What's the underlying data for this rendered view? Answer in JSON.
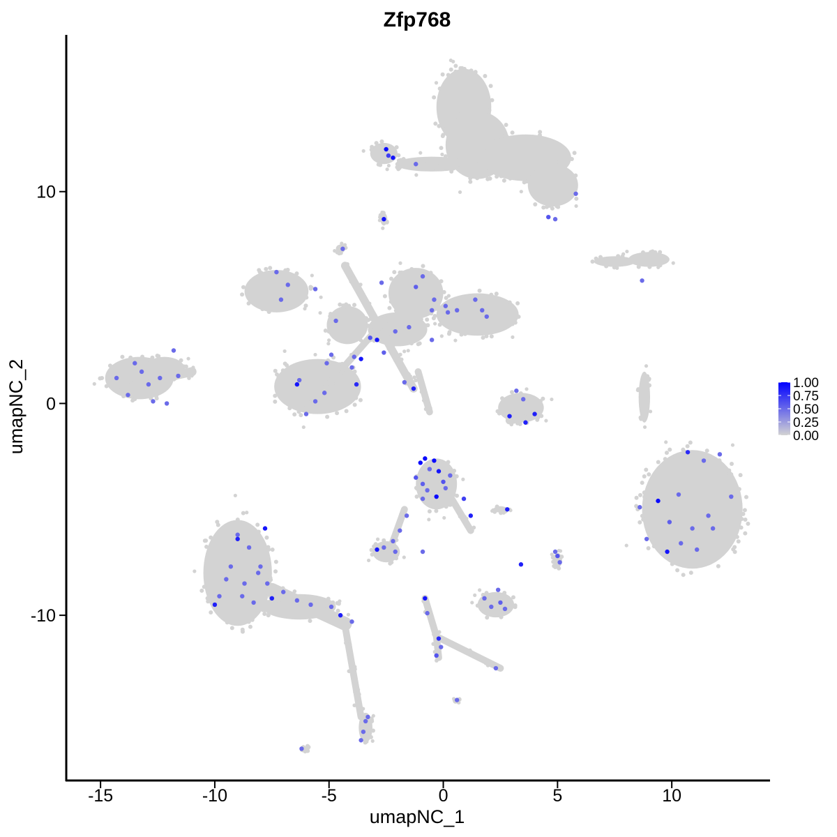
{
  "chart_data": {
    "type": "scatter",
    "title": "Zfp768",
    "xlabel": "umapNC_1",
    "ylabel": "umapNC_2",
    "xlim": [
      -16.5,
      14.3
    ],
    "ylim": [
      -17.8,
      17.4
    ],
    "x_ticks": [
      -15,
      -10,
      -5,
      0,
      5,
      10
    ],
    "x_tick_labels": [
      "-15",
      "-10",
      "-5",
      "0",
      "5",
      "10"
    ],
    "y_ticks": [
      -10,
      0,
      10
    ],
    "y_tick_labels": [
      "-10",
      "0",
      "10"
    ],
    "grid": false,
    "legend": {
      "position": "right",
      "type": "colorbar",
      "range": [
        0,
        1
      ],
      "ticks": [
        1.0,
        0.75,
        0.5,
        0.25,
        0.0
      ],
      "tick_labels": [
        "1.00",
        "0.75",
        "0.50",
        "0.25",
        "0.00"
      ],
      "low_color": "#D3D3D3",
      "high_color": "#0000FF"
    },
    "colors": {
      "unexpressed": "#D3D3D3",
      "mid_expression": "#8A5CF5",
      "high_expression": "#0000FF"
    },
    "clusters": [
      {
        "shape": "ellipse",
        "cx": 0.9,
        "cy": 14.0,
        "rx": 1.2,
        "ry": 1.8
      },
      {
        "shape": "ellipse",
        "cx": 1.5,
        "cy": 12.2,
        "rx": 1.4,
        "ry": 1.6
      },
      {
        "shape": "ellipse",
        "cx": 3.6,
        "cy": 11.6,
        "rx": 2.0,
        "ry": 1.1
      },
      {
        "shape": "ellipse",
        "cx": 4.8,
        "cy": 10.3,
        "rx": 1.1,
        "ry": 1.0
      },
      {
        "shape": "ellipse",
        "cx": -0.5,
        "cy": 11.3,
        "rx": 1.6,
        "ry": 0.35
      },
      {
        "shape": "ellipse",
        "cx": -2.6,
        "cy": 11.8,
        "rx": 0.6,
        "ry": 0.5
      },
      {
        "shape": "ellipse",
        "cx": 9.0,
        "cy": 6.8,
        "rx": 0.9,
        "ry": 0.35
      },
      {
        "shape": "ellipse",
        "cx": 7.5,
        "cy": 6.7,
        "rx": 0.9,
        "ry": 0.25
      },
      {
        "shape": "ellipse",
        "cx": -7.3,
        "cy": 5.3,
        "rx": 1.4,
        "ry": 1.0
      },
      {
        "shape": "ellipse",
        "cx": -1.2,
        "cy": 5.2,
        "rx": 1.2,
        "ry": 1.2
      },
      {
        "shape": "ellipse",
        "cx": 1.5,
        "cy": 4.2,
        "rx": 1.8,
        "ry": 1.0
      },
      {
        "shape": "ellipse",
        "cx": -2.0,
        "cy": 3.5,
        "rx": 1.3,
        "ry": 0.8
      },
      {
        "shape": "ellipse",
        "cx": -4.2,
        "cy": 3.7,
        "rx": 0.9,
        "ry": 0.9
      },
      {
        "shape": "ellipse",
        "cx": -5.5,
        "cy": 0.8,
        "rx": 1.9,
        "ry": 1.3
      },
      {
        "shape": "ellipse",
        "cx": -13.3,
        "cy": 1.2,
        "rx": 1.5,
        "ry": 1.0
      },
      {
        "shape": "ellipse",
        "cx": -12.2,
        "cy": 1.6,
        "rx": 0.9,
        "ry": 0.6
      },
      {
        "shape": "ellipse",
        "cx": 3.4,
        "cy": -0.2,
        "rx": 1.0,
        "ry": 0.7
      },
      {
        "shape": "ellipse",
        "cx": 8.8,
        "cy": 0.3,
        "rx": 0.25,
        "ry": 1.2
      },
      {
        "shape": "ellipse",
        "cx": 10.9,
        "cy": -5.0,
        "rx": 2.2,
        "ry": 2.8
      },
      {
        "shape": "ellipse",
        "cx": -0.3,
        "cy": -3.8,
        "rx": 0.9,
        "ry": 1.2
      },
      {
        "shape": "ellipse",
        "cx": -9.0,
        "cy": -8.0,
        "rx": 1.5,
        "ry": 2.5
      },
      {
        "shape": "ellipse",
        "cx": -6.3,
        "cy": -9.6,
        "rx": 1.6,
        "ry": 0.6
      },
      {
        "shape": "ellipse",
        "cx": -2.5,
        "cy": -7.0,
        "rx": 0.6,
        "ry": 0.5
      },
      {
        "shape": "ellipse",
        "cx": 2.3,
        "cy": -9.5,
        "rx": 0.8,
        "ry": 0.6
      },
      {
        "shape": "ellipse",
        "cx": 5.0,
        "cy": -7.4,
        "rx": 0.2,
        "ry": 0.35
      },
      {
        "shape": "ellipse",
        "cx": -3.4,
        "cy": -15.3,
        "rx": 0.3,
        "ry": 0.7
      },
      {
        "shape": "ellipse",
        "cx": 2.5,
        "cy": -5.0,
        "rx": 0.3,
        "ry": 0.15
      },
      {
        "shape": "ellipse",
        "cx": -2.6,
        "cy": 8.7,
        "rx": 0.15,
        "ry": 0.3
      },
      {
        "shape": "ellipse",
        "cx": -4.5,
        "cy": 7.3,
        "rx": 0.2,
        "ry": 0.2
      },
      {
        "shape": "ellipse",
        "cx": -6.0,
        "cy": -16.3,
        "rx": 0.15,
        "ry": 0.12
      },
      {
        "shape": "ellipse",
        "cx": 0.6,
        "cy": -14.0,
        "rx": 0.1,
        "ry": 0.1
      },
      {
        "shape": "line",
        "from": [
          -4.3,
          6.5
        ],
        "to": [
          -1.3,
          0.7
        ],
        "w": 0.35
      },
      {
        "shape": "line",
        "from": [
          -2.5,
          4.0
        ],
        "to": [
          -6.0,
          -0.3
        ],
        "w": 0.3
      },
      {
        "shape": "line",
        "from": [
          -0.8,
          11.2
        ],
        "to": [
          0.9,
          11.4
        ],
        "w": 0.35
      },
      {
        "shape": "line",
        "from": [
          -1.1,
          1.5
        ],
        "to": [
          -0.6,
          -0.4
        ],
        "w": 0.3
      },
      {
        "shape": "line",
        "from": [
          1.2,
          -6.0
        ],
        "to": [
          0.2,
          -4.2
        ],
        "w": 0.3
      },
      {
        "shape": "line",
        "from": [
          -1.7,
          -5.0
        ],
        "to": [
          -2.3,
          -6.8
        ],
        "w": 0.3
      },
      {
        "shape": "line",
        "from": [
          -0.8,
          -9.2
        ],
        "to": [
          -0.3,
          -11.0
        ],
        "w": 0.3
      },
      {
        "shape": "line",
        "from": [
          -0.3,
          -11.0
        ],
        "to": [
          2.5,
          -12.5
        ],
        "w": 0.3
      },
      {
        "shape": "line",
        "from": [
          -0.3,
          -11.0
        ],
        "to": [
          -0.2,
          -12.0
        ],
        "w": 0.3
      },
      {
        "shape": "line",
        "from": [
          -4.3,
          -10.5
        ],
        "to": [
          -3.6,
          -14.8
        ],
        "w": 0.3
      },
      {
        "shape": "line",
        "from": [
          -7.5,
          -8.8
        ],
        "to": [
          -4.3,
          -10.4
        ],
        "w": 0.6
      },
      {
        "shape": "line",
        "from": [
          -14.0,
          0.8
        ],
        "to": [
          -11.0,
          1.5
        ],
        "w": 0.4
      },
      {
        "shape": "line",
        "from": [
          2.9,
          -0.8
        ],
        "to": [
          4.1,
          -0.5
        ],
        "w": 0.35
      }
    ],
    "expressing_points": [
      [
        -2.5,
        12.0,
        0.95
      ],
      [
        -2.4,
        11.7,
        0.7
      ],
      [
        -2.2,
        11.6,
        0.9
      ],
      [
        -1.2,
        11.3,
        0.5
      ],
      [
        5.8,
        9.9,
        0.5
      ],
      [
        4.6,
        8.8,
        0.6
      ],
      [
        4.9,
        8.7,
        0.5
      ],
      [
        -2.6,
        8.7,
        0.9
      ],
      [
        8.7,
        5.8,
        0.5
      ],
      [
        -4.4,
        7.3,
        0.5
      ],
      [
        -7.3,
        6.2,
        0.5
      ],
      [
        -6.8,
        5.6,
        0.5
      ],
      [
        -7.1,
        4.9,
        0.5
      ],
      [
        -5.6,
        5.4,
        0.5
      ],
      [
        -0.9,
        6.0,
        0.5
      ],
      [
        -1.2,
        5.5,
        0.55
      ],
      [
        0.1,
        4.6,
        0.5
      ],
      [
        1.7,
        4.4,
        0.5
      ],
      [
        1.9,
        4.1,
        0.5
      ],
      [
        -0.5,
        4.4,
        0.5
      ],
      [
        -1.5,
        3.6,
        0.5
      ],
      [
        -2.1,
        3.4,
        0.5
      ],
      [
        -3.2,
        3.1,
        0.6
      ],
      [
        -2.9,
        3.0,
        0.9
      ],
      [
        -3.6,
        2.1,
        0.9
      ],
      [
        -3.9,
        2.2,
        0.5
      ],
      [
        -4.0,
        1.7,
        0.5
      ],
      [
        -3.8,
        0.9,
        0.8
      ],
      [
        -4.9,
        2.3,
        0.5
      ],
      [
        -5.1,
        1.9,
        0.5
      ],
      [
        -6.3,
        1.1,
        0.5
      ],
      [
        -5.2,
        0.5,
        0.5
      ],
      [
        -5.6,
        0.1,
        0.5
      ],
      [
        -6.0,
        -0.5,
        0.5
      ],
      [
        -6.4,
        0.9,
        0.9
      ],
      [
        -1.3,
        0.7,
        0.85
      ],
      [
        -4.7,
        3.9,
        0.5
      ],
      [
        -2.6,
        2.4,
        0.55
      ],
      [
        -1.7,
        1.0,
        0.5
      ],
      [
        0.2,
        4.3,
        0.5
      ],
      [
        3.2,
        0.6,
        0.5
      ],
      [
        3.5,
        0.2,
        0.5
      ],
      [
        2.9,
        -0.6,
        0.85
      ],
      [
        3.6,
        -0.9,
        0.85
      ],
      [
        4.0,
        -0.5,
        0.85
      ],
      [
        10.7,
        -2.3,
        0.8
      ],
      [
        11.4,
        -2.7,
        0.5
      ],
      [
        12.1,
        -2.4,
        0.5
      ],
      [
        10.3,
        -4.3,
        0.5
      ],
      [
        9.4,
        -4.6,
        0.95
      ],
      [
        9.9,
        -5.6,
        0.55
      ],
      [
        8.6,
        -4.9,
        0.5
      ],
      [
        11.6,
        -5.3,
        0.5
      ],
      [
        10.9,
        -5.9,
        0.5
      ],
      [
        9.8,
        -7.0,
        0.9
      ],
      [
        11.8,
        -5.9,
        0.5
      ],
      [
        12.6,
        -4.4,
        0.5
      ],
      [
        10.4,
        -6.6,
        0.5
      ],
      [
        8.9,
        -6.4,
        0.5
      ],
      [
        11.1,
        -6.9,
        0.5
      ],
      [
        -1.0,
        -2.8,
        0.95
      ],
      [
        -0.8,
        -2.6,
        0.95
      ],
      [
        -0.4,
        -2.7,
        0.95
      ],
      [
        -1.2,
        -3.5,
        0.6
      ],
      [
        -0.9,
        -3.8,
        0.55
      ],
      [
        -0.2,
        -3.2,
        0.9
      ],
      [
        0.0,
        -3.7,
        0.6
      ],
      [
        -0.3,
        -4.4,
        0.95
      ],
      [
        -0.7,
        -4.1,
        0.5
      ],
      [
        0.3,
        -3.4,
        0.5
      ],
      [
        0.9,
        -4.5,
        0.7
      ],
      [
        1.2,
        -5.3,
        0.85
      ],
      [
        -0.6,
        -3.1,
        0.5
      ],
      [
        0.1,
        -4.0,
        0.5
      ],
      [
        -0.9,
        -4.5,
        0.5
      ],
      [
        -1.6,
        -5.3,
        0.5
      ],
      [
        -1.9,
        -6.0,
        0.5
      ],
      [
        -2.2,
        -6.5,
        0.5
      ],
      [
        -2.9,
        -6.9,
        0.9
      ],
      [
        -2.6,
        -6.8,
        0.5
      ],
      [
        -2.1,
        -7.0,
        0.5
      ],
      [
        -0.9,
        -7.0,
        0.5
      ],
      [
        2.8,
        -5.0,
        0.85
      ],
      [
        3.4,
        -7.6,
        0.85
      ],
      [
        5.0,
        -7.2,
        0.6
      ],
      [
        5.1,
        -7.5,
        0.5
      ],
      [
        4.9,
        -7.0,
        0.5
      ],
      [
        -0.8,
        -9.2,
        0.9
      ],
      [
        -0.7,
        -9.9,
        0.5
      ],
      [
        -0.2,
        -11.1,
        0.8
      ],
      [
        -0.1,
        -11.5,
        0.5
      ],
      [
        -0.3,
        -11.9,
        0.6
      ],
      [
        2.3,
        -12.5,
        0.5
      ],
      [
        -6.2,
        -16.3,
        0.5
      ],
      [
        0.6,
        -14.0,
        0.5
      ],
      [
        1.8,
        -9.2,
        0.5
      ],
      [
        2.1,
        -9.6,
        0.5
      ],
      [
        2.5,
        -9.4,
        0.55
      ],
      [
        2.7,
        -9.7,
        0.5
      ],
      [
        2.4,
        -8.8,
        0.5
      ],
      [
        -4.0,
        -10.3,
        0.5
      ],
      [
        -4.5,
        -10.0,
        0.85
      ],
      [
        -4.9,
        -9.6,
        0.5
      ],
      [
        -5.8,
        -9.5,
        0.5
      ],
      [
        -6.4,
        -9.3,
        0.5
      ],
      [
        -7.0,
        -8.9,
        0.5
      ],
      [
        -3.4,
        -15.0,
        0.5
      ],
      [
        -3.5,
        -15.5,
        0.5
      ],
      [
        -3.3,
        -14.8,
        0.5
      ],
      [
        -3.6,
        -15.9,
        0.5
      ],
      [
        -9.0,
        -6.2,
        0.5
      ],
      [
        -8.5,
        -6.8,
        0.5
      ],
      [
        -7.8,
        -5.9,
        0.9
      ],
      [
        -9.3,
        -7.7,
        0.5
      ],
      [
        -8.7,
        -8.5,
        0.5
      ],
      [
        -9.8,
        -9.1,
        0.5
      ],
      [
        -10.0,
        -9.5,
        0.85
      ],
      [
        -9.0,
        -6.4,
        0.85
      ],
      [
        -7.5,
        -9.2,
        0.85
      ],
      [
        -8.3,
        -9.4,
        0.5
      ],
      [
        -8.0,
        -7.7,
        0.5
      ],
      [
        -9.5,
        -8.3,
        0.5
      ],
      [
        -8.1,
        -8.0,
        0.5
      ],
      [
        -8.8,
        -9.1,
        0.5
      ],
      [
        -7.7,
        -8.5,
        0.5
      ],
      [
        -13.2,
        1.5,
        0.5
      ],
      [
        -12.9,
        0.9,
        0.5
      ],
      [
        -13.8,
        0.4,
        0.5
      ],
      [
        -12.4,
        1.2,
        0.5
      ],
      [
        -13.5,
        1.9,
        0.5
      ],
      [
        -11.8,
        2.5,
        0.5
      ],
      [
        -11.6,
        1.3,
        0.5
      ],
      [
        -12.7,
        0.1,
        0.5
      ],
      [
        -14.3,
        1.2,
        0.5
      ],
      [
        -12.1,
        0.0,
        0.5
      ],
      [
        -0.4,
        4.9,
        0.5
      ],
      [
        0.6,
        4.4,
        0.5
      ],
      [
        1.4,
        4.9,
        0.5
      ],
      [
        -0.5,
        3.0,
        0.5
      ],
      [
        -2.7,
        5.7,
        0.5
      ]
    ]
  }
}
